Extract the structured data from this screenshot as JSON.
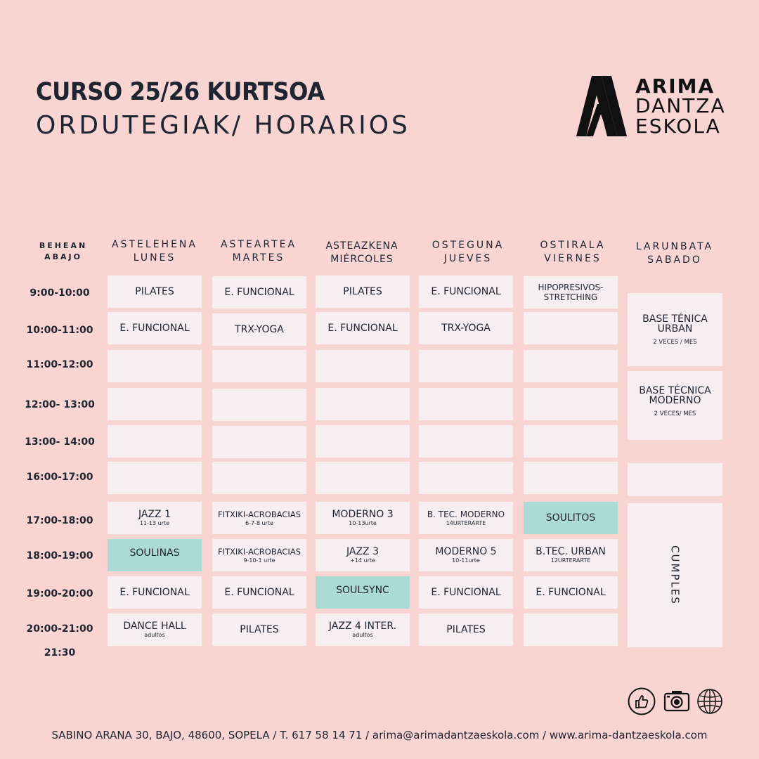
{
  "header": {
    "title": "CURSO 25/26 KURTSOA",
    "subtitle": "ORDUTEGIAK/ HORARIOS"
  },
  "logo": {
    "line1": "ARIMA",
    "line2": "DANTZA",
    "line3": "ESKOLA"
  },
  "corner": {
    "line1": "BEHEAN",
    "line2": "ABAJO"
  },
  "days": [
    {
      "eu": "ASTELEHENA",
      "es": "LUNES"
    },
    {
      "eu": "ASTEARTEA",
      "es": "MARTES"
    },
    {
      "eu": "ASTEAZKENA",
      "es": "MIÉRCOLES"
    },
    {
      "eu": "OSTEGUNA",
      "es": "JUEVES"
    },
    {
      "eu": "OSTIRALA",
      "es": "VIERNES"
    },
    {
      "eu": "LARUNBATA",
      "es": "SABADO"
    }
  ],
  "times": [
    "9:00-10:00",
    "10:00-11:00",
    "11:00-12:00",
    "12:00- 13:00",
    "13:00- 14:00",
    "16:00-17:00",
    "17:00-18:00",
    "18:00-19:00",
    "19:00-20:00",
    "20:00-21:00",
    "21:30"
  ],
  "schedule": {
    "mon": [
      {
        "name": "PILATES",
        "note": ""
      },
      {
        "name": "E. FUNCIONAL",
        "note": ""
      },
      {
        "name": "",
        "note": ""
      },
      {
        "name": "",
        "note": ""
      },
      {
        "name": "",
        "note": ""
      },
      {
        "name": "",
        "note": ""
      },
      {
        "name": "JAZZ 1",
        "note": "11-13 urte"
      },
      {
        "name": "SOULINAS",
        "note": ""
      },
      {
        "name": "E. FUNCIONAL",
        "note": ""
      },
      {
        "name": "DANCE HALL",
        "note": "adultos"
      }
    ],
    "tue": [
      {
        "name": "E. FUNCIONAL",
        "note": ""
      },
      {
        "name": "TRX-YOGA",
        "note": ""
      },
      {
        "name": "",
        "note": ""
      },
      {
        "name": "",
        "note": ""
      },
      {
        "name": "",
        "note": ""
      },
      {
        "name": "",
        "note": ""
      },
      {
        "name": "FITXIKI-ACROBACIAS",
        "note": "6-7-8 urte"
      },
      {
        "name": "FITXIKI-ACROBACIAS",
        "note": "9-10-1 urte"
      },
      {
        "name": "E. FUNCIONAL",
        "note": ""
      },
      {
        "name": "PILATES",
        "note": ""
      }
    ],
    "wed": [
      {
        "name": "PILATES",
        "note": ""
      },
      {
        "name": "E. FUNCIONAL",
        "note": ""
      },
      {
        "name": "",
        "note": ""
      },
      {
        "name": "",
        "note": ""
      },
      {
        "name": "",
        "note": ""
      },
      {
        "name": "",
        "note": ""
      },
      {
        "name": "MODERNO 3",
        "note": "10-13urte"
      },
      {
        "name": "JAZZ 3",
        "note": "+14 urte"
      },
      {
        "name": "SOULSYNC",
        "note": ""
      },
      {
        "name": "JAZZ 4 INTER.",
        "note": "adultos"
      }
    ],
    "thu": [
      {
        "name": "E. FUNCIONAL",
        "note": ""
      },
      {
        "name": "TRX-YOGA",
        "note": ""
      },
      {
        "name": "",
        "note": ""
      },
      {
        "name": "",
        "note": ""
      },
      {
        "name": "",
        "note": ""
      },
      {
        "name": "",
        "note": ""
      },
      {
        "name": "B. TEC. MODERNO",
        "note": "14URTERARTE"
      },
      {
        "name": "MODERNO 5",
        "note": "10-11urte"
      },
      {
        "name": "E. FUNCIONAL",
        "note": ""
      },
      {
        "name": "PILATES",
        "note": ""
      }
    ],
    "fri": [
      {
        "name_line1": "HIPOPRESIVOS-",
        "name_line2": "STRETCHING"
      },
      {
        "name": "",
        "note": ""
      },
      {
        "name": "",
        "note": ""
      },
      {
        "name": "",
        "note": ""
      },
      {
        "name": "",
        "note": ""
      },
      {
        "name": "",
        "note": ""
      },
      {
        "name": "SOULITOS",
        "note": ""
      },
      {
        "name": "B.TEC. URBAN",
        "note": "12URTERARTE"
      },
      {
        "name": "E. FUNCIONAL",
        "note": ""
      },
      {
        "name": "",
        "note": ""
      }
    ],
    "sat": {
      "block1": {
        "line1": "BASE TÉNICA",
        "line2": "URBAN",
        "note": "2 VECES / MES"
      },
      "block2": {
        "line1": "BASE TÉCNICA",
        "line2": "MODERNO",
        "note": "2 VECES/ MES"
      },
      "block3": {
        "name": ""
      },
      "block4": {
        "name": "CUMPLES"
      }
    }
  },
  "colors": {
    "background": "#f8d5d2",
    "cell": "#f6eef1",
    "highlight": "#acdbd6",
    "text": "#1e2430"
  },
  "social": [
    "thumbs-up-icon",
    "camera-icon",
    "globe-icon"
  ],
  "footer": "SABINO ARANA 30, BAJO, 48600, SOPELA / T. 617 58 14 71 / arima@arimadantzaeskola.com / www.arima-dantzaeskola.com"
}
